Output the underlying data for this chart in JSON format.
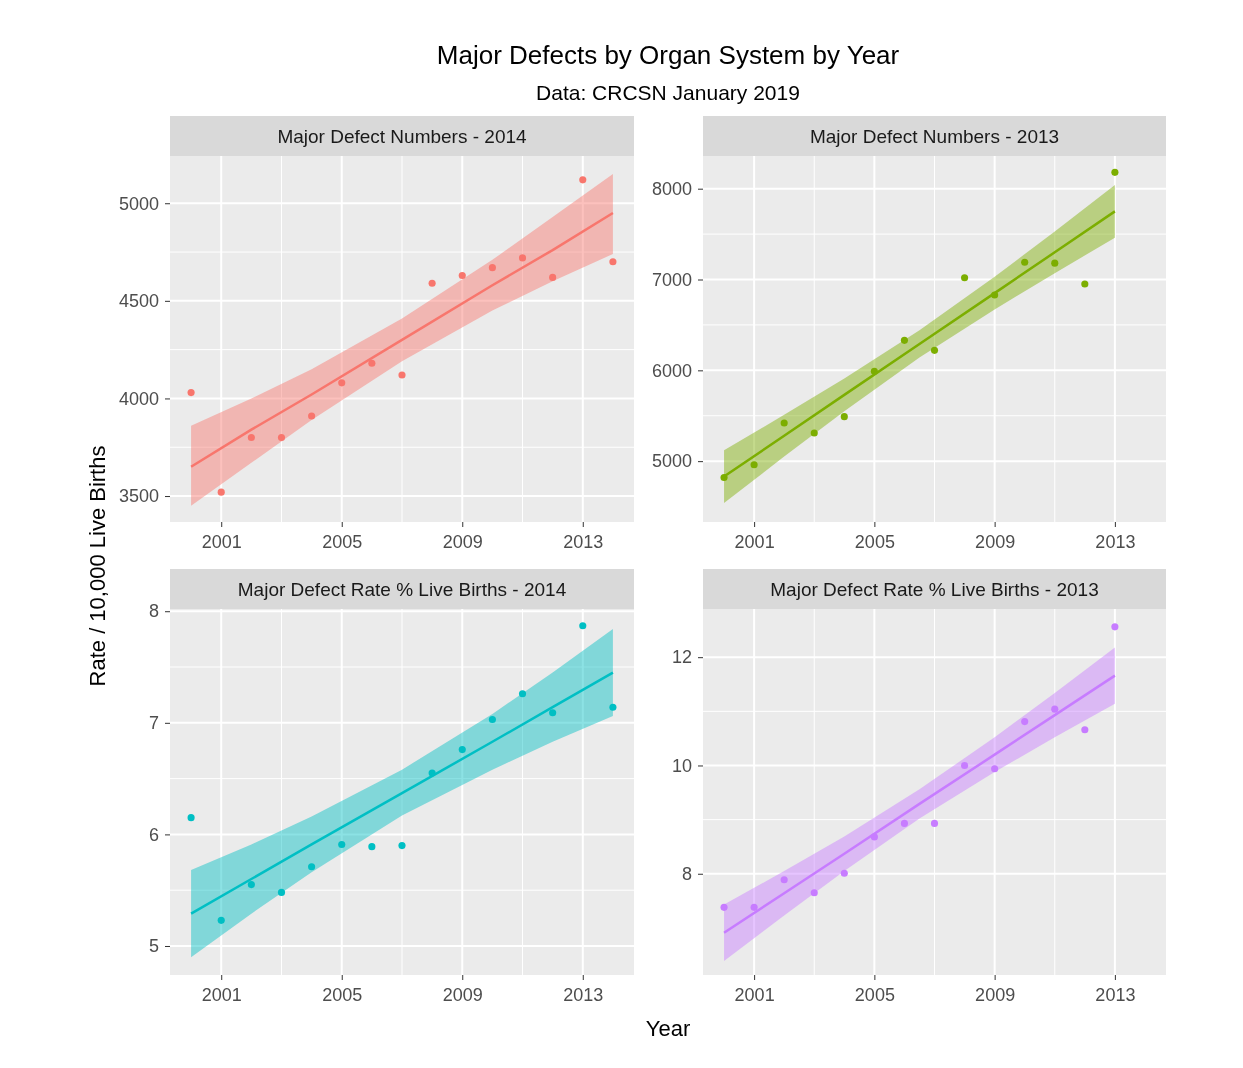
{
  "chart_data": [
    {
      "type": "other",
      "title": "Major Defects by Organ System by Year",
      "subtitle": "Data: CRCSN January 2019",
      "xlabel": "Year",
      "ylabel": "Rate / 10,000 Live Births"
    },
    {
      "type": "scatter",
      "title": "Major Defect Numbers - 2014",
      "x": [
        2000,
        2001,
        2002,
        2003,
        2004,
        2005,
        2006,
        2007,
        2008,
        2009,
        2010,
        2011,
        2012,
        2013,
        2014
      ],
      "xlim": [
        1999.3,
        2014.7
      ],
      "xticks": [
        2001,
        2005,
        2009,
        2013
      ],
      "ylim": [
        3367,
        5242
      ],
      "yticks": [
        3500,
        4000,
        4500,
        5000
      ],
      "grid": true,
      "series": [
        {
          "type": "scatter",
          "marker": "circle",
          "color": "#f8766d",
          "values": [
            4030,
            3520,
            3800,
            3800,
            3910,
            4080,
            4180,
            4120,
            4590,
            4630,
            4670,
            4720,
            4620,
            5120,
            4700
          ]
        },
        {
          "type": "line",
          "color": "#f8766d",
          "x": [
            2000,
            2002,
            2004,
            2007,
            2010,
            2012,
            2014
          ],
          "values": [
            3650,
            3840,
            4020,
            4300,
            4580,
            4760,
            4950
          ],
          "lower": [
            3450,
            3670,
            3890,
            4190,
            4450,
            4600,
            4740
          ],
          "upper": [
            3860,
            4000,
            4150,
            4410,
            4710,
            4930,
            5150
          ]
        }
      ]
    },
    {
      "type": "scatter",
      "title": "Major Defect Numbers - 2013",
      "x": [
        2000,
        2001,
        2002,
        2003,
        2004,
        2005,
        2006,
        2007,
        2008,
        2009,
        2010,
        2011,
        2012,
        2013
      ],
      "xlim": [
        1999.3,
        2014.7
      ],
      "xticks": [
        2001,
        2005,
        2009,
        2013
      ],
      "ylim": [
        4330,
        8360
      ],
      "yticks": [
        5000,
        6000,
        7000,
        8000
      ],
      "grid": true,
      "series": [
        {
          "type": "scatter",
          "marker": "circle",
          "color": "#7cae00",
          "values": [
            4820,
            4960,
            5420,
            5310,
            5490,
            5990,
            6330,
            6220,
            7020,
            6830,
            7190,
            7180,
            6950,
            8180
          ]
        },
        {
          "type": "line",
          "color": "#7cae00",
          "x": [
            2000,
            2002,
            2004,
            2006.5,
            2009,
            2011,
            2013
          ],
          "values": [
            4830,
            5280,
            5730,
            6290,
            6850,
            7300,
            7750
          ],
          "lower": [
            4540,
            5050,
            5550,
            6140,
            6670,
            7070,
            7460
          ],
          "upper": [
            5120,
            5510,
            5910,
            6440,
            7030,
            7530,
            8040
          ]
        }
      ]
    },
    {
      "type": "scatter",
      "title": "Major Defect Rate % Live Births - 2014",
      "x": [
        2000,
        2001,
        2002,
        2003,
        2004,
        2005,
        2006,
        2007,
        2008,
        2009,
        2010,
        2011,
        2012,
        2013,
        2014
      ],
      "xlim": [
        1999.3,
        2014.7
      ],
      "xticks": [
        2001,
        2005,
        2009,
        2013
      ],
      "ylim": [
        4.74,
        8.02
      ],
      "yticks": [
        5,
        6,
        7,
        8
      ],
      "grid": true,
      "series": [
        {
          "type": "scatter",
          "marker": "circle",
          "color": "#00bfc4",
          "values": [
            6.15,
            5.23,
            5.55,
            5.48,
            5.71,
            5.91,
            5.89,
            5.9,
            6.55,
            6.76,
            7.03,
            7.26,
            7.09,
            7.87,
            7.14
          ]
        },
        {
          "type": "line",
          "color": "#00bfc4",
          "x": [
            2000,
            2002,
            2004,
            2007,
            2010,
            2012,
            2014
          ],
          "values": [
            5.29,
            5.6,
            5.91,
            6.37,
            6.83,
            7.14,
            7.45
          ],
          "lower": [
            4.9,
            5.29,
            5.66,
            6.17,
            6.58,
            6.83,
            7.06
          ],
          "upper": [
            5.68,
            5.91,
            6.16,
            6.58,
            7.08,
            7.45,
            7.84
          ]
        }
      ]
    },
    {
      "type": "scatter",
      "title": "Major Defect Rate % Live Births - 2013",
      "x": [
        2000,
        2001,
        2002,
        2003,
        2004,
        2005,
        2006,
        2007,
        2008,
        2009,
        2010,
        2011,
        2012,
        2013
      ],
      "xlim": [
        1999.3,
        2014.7
      ],
      "xticks": [
        2001,
        2005,
        2009,
        2013
      ],
      "ylim": [
        6.13,
        12.89
      ],
      "yticks": [
        8,
        10,
        12
      ],
      "grid": true,
      "series": [
        {
          "type": "scatter",
          "marker": "circle",
          "color": "#c77cff",
          "values": [
            7.38,
            7.38,
            7.89,
            7.65,
            8.01,
            8.68,
            8.93,
            8.93,
            10,
            9.94,
            10.81,
            11.04,
            10.66,
            12.56
          ]
        },
        {
          "type": "line",
          "color": "#c77cff",
          "x": [
            2000,
            2002,
            2004,
            2006.5,
            2009,
            2011,
            2013
          ],
          "values": [
            6.91,
            7.64,
            8.37,
            9.29,
            10.2,
            10.93,
            11.66
          ],
          "lower": [
            6.39,
            7.23,
            8.05,
            9.02,
            9.88,
            10.52,
            11.14
          ],
          "upper": [
            7.43,
            8.05,
            8.69,
            9.56,
            10.52,
            11.34,
            12.18
          ]
        }
      ]
    }
  ]
}
